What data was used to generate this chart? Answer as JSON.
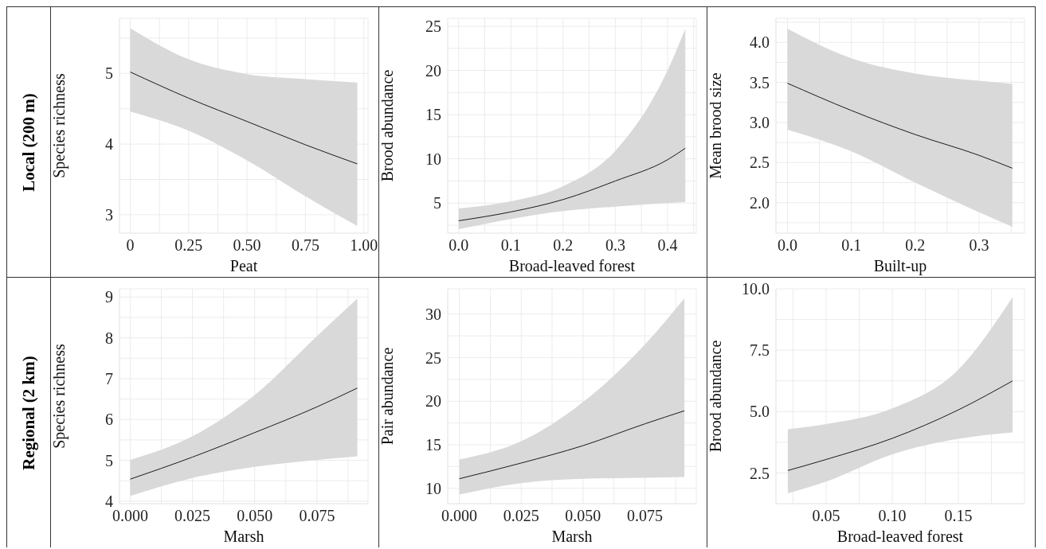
{
  "chart_data": [
    {
      "type": "line",
      "xlabel": "Peat",
      "ylabel": "Species richness",
      "annotations": [
        "Local (200 m)"
      ],
      "grid": true,
      "xlim": [
        -0.046,
        1.018
      ],
      "ylim": [
        2.74,
        5.78
      ],
      "xticks": [
        0,
        {
          "value": 0.125,
          "label": null
        },
        0.25,
        {
          "value": 0.375,
          "label": null
        },
        {
          "value": 0.5,
          "label": "0.50"
        },
        {
          "value": 0.625,
          "label": null
        },
        0.75,
        {
          "value": 0.875,
          "label": null
        },
        {
          "value": 1,
          "label": "1.00"
        }
      ],
      "yticks": [
        3,
        {
          "value": 3.5,
          "label": null
        },
        4,
        {
          "value": 4.5,
          "label": null
        },
        5,
        {
          "value": 5.5,
          "label": null
        }
      ],
      "series": [
        {
          "color": "#1a1a1a",
          "x": [
            0,
            0.25,
            0.5,
            0.75,
            0.972
          ],
          "values": [
            5.02,
            4.65,
            4.32,
            3.99,
            3.72
          ],
          "lower": [
            4.46,
            4.19,
            3.77,
            3.26,
            2.84
          ],
          "upper": [
            5.64,
            5.2,
            4.99,
            4.92,
            4.87
          ]
        }
      ]
    },
    {
      "type": "line",
      "xlabel": "Broad-leaved forest",
      "ylabel": "Brood abundance",
      "grid": true,
      "xlim": [
        -0.021,
        0.455
      ],
      "ylim": [
        1.6,
        25.9
      ],
      "xticks": [
        {
          "value": 0,
          "label": "0.0"
        },
        {
          "value": 0.05,
          "label": null
        },
        0.1,
        {
          "value": 0.15,
          "label": null
        },
        0.2,
        {
          "value": 0.25,
          "label": null
        },
        0.3,
        {
          "value": 0.35,
          "label": null
        },
        0.4,
        {
          "value": 0.45,
          "label": null
        }
      ],
      "yticks": [
        {
          "value": 2.5,
          "label": null
        },
        5,
        {
          "value": 7.5,
          "label": null
        },
        10,
        {
          "value": 12.5,
          "label": null
        },
        15,
        {
          "value": 17.5,
          "label": null
        },
        20,
        {
          "value": 22.5,
          "label": null
        },
        25
      ],
      "series": [
        {
          "color": "#1a1a1a",
          "x": [
            0,
            0.1,
            0.2,
            0.3,
            0.4,
            0.434
          ],
          "values": [
            3.0,
            4.0,
            5.4,
            7.5,
            9.9,
            11.2
          ],
          "lower": [
            2.05,
            3.2,
            4.1,
            4.6,
            5.0,
            5.1
          ],
          "upper": [
            4.4,
            5.2,
            6.9,
            10.9,
            20,
            24.7
          ]
        }
      ]
    },
    {
      "type": "line",
      "xlabel": "Built-up",
      "ylabel": "Mean brood size",
      "grid": true,
      "xlim": [
        -0.018,
        0.371
      ],
      "ylim": [
        1.62,
        4.3
      ],
      "xticks": [
        {
          "value": 0,
          "label": "0.0"
        },
        {
          "value": 0.05,
          "label": null
        },
        0.1,
        {
          "value": 0.15,
          "label": null
        },
        0.2,
        {
          "value": 0.25,
          "label": null
        },
        0.3,
        {
          "value": 0.35,
          "label": null
        }
      ],
      "yticks": [
        {
          "value": 1.75,
          "label": null
        },
        {
          "value": 2,
          "label": "2.0"
        },
        {
          "value": 2.25,
          "label": null
        },
        2.5,
        {
          "value": 2.75,
          "label": null
        },
        {
          "value": 3,
          "label": "3.0"
        },
        {
          "value": 3.25,
          "label": null
        },
        3.5,
        {
          "value": 3.75,
          "label": null
        },
        {
          "value": 4,
          "label": "4.0"
        },
        {
          "value": 4.25,
          "label": null
        }
      ],
      "series": [
        {
          "color": "#1a1a1a",
          "x": [
            0,
            0.1,
            0.2,
            0.3,
            0.352
          ],
          "values": [
            3.49,
            3.15,
            2.85,
            2.59,
            2.43
          ],
          "lower": [
            2.91,
            2.64,
            2.25,
            1.88,
            1.7
          ],
          "upper": [
            4.17,
            3.8,
            3.61,
            3.52,
            3.48
          ]
        }
      ]
    },
    {
      "type": "line",
      "xlabel": "Marsh",
      "ylabel": "Species richness",
      "annotations": [
        "Regional (2 km)"
      ],
      "grid": true,
      "xlim": [
        -0.0043,
        0.0955
      ],
      "ylim": [
        3.94,
        9.2
      ],
      "xticks": [
        {
          "value": 0,
          "label": "0.000"
        },
        {
          "value": 0.0125,
          "label": null
        },
        0.025,
        {
          "value": 0.0375,
          "label": null
        },
        {
          "value": 0.05,
          "label": "0.050"
        },
        {
          "value": 0.0625,
          "label": null
        },
        0.075,
        {
          "value": 0.0875,
          "label": null
        }
      ],
      "yticks": [
        4,
        {
          "value": 4.5,
          "label": null
        },
        5,
        {
          "value": 5.5,
          "label": null
        },
        6,
        {
          "value": 6.5,
          "label": null
        },
        7,
        {
          "value": 7.5,
          "label": null
        },
        8,
        {
          "value": 8.5,
          "label": null
        },
        9
      ],
      "series": [
        {
          "color": "#1a1a1a",
          "x": [
            0,
            0.025,
            0.05,
            0.075,
            0.0912
          ],
          "values": [
            4.54,
            5.08,
            5.68,
            6.31,
            6.77
          ],
          "lower": [
            4.13,
            4.57,
            4.84,
            5.01,
            5.1
          ],
          "upper": [
            5.01,
            5.59,
            6.6,
            8.04,
            8.96
          ]
        }
      ]
    },
    {
      "type": "line",
      "xlabel": "Marsh",
      "ylabel": "Pair abundance",
      "grid": true,
      "xlim": [
        -0.0047,
        0.0958
      ],
      "ylim": [
        8.24,
        32.9
      ],
      "xticks": [
        {
          "value": 0,
          "label": "0.000"
        },
        {
          "value": 0.0125,
          "label": null
        },
        0.025,
        {
          "value": 0.0375,
          "label": null
        },
        {
          "value": 0.05,
          "label": "0.050"
        },
        {
          "value": 0.0625,
          "label": null
        },
        0.075,
        {
          "value": 0.0875,
          "label": null
        }
      ],
      "yticks": [
        10,
        {
          "value": 12.5,
          "label": null
        },
        15,
        {
          "value": 17.5,
          "label": null
        },
        20,
        {
          "value": 22.5,
          "label": null
        },
        25,
        {
          "value": 27.5,
          "label": null
        },
        30
      ],
      "series": [
        {
          "color": "#1a1a1a",
          "x": [
            0,
            0.025,
            0.05,
            0.075,
            0.091
          ],
          "values": [
            11.1,
            12.9,
            14.9,
            17.4,
            18.9
          ],
          "lower": [
            9.3,
            10.6,
            11.1,
            11.2,
            11.3
          ],
          "upper": [
            13.3,
            15.4,
            19.9,
            26.5,
            31.8
          ]
        }
      ]
    },
    {
      "type": "line",
      "xlabel": "Broad-leaved forest",
      "ylabel": "Brood abundance",
      "grid": true,
      "xlim": [
        0.012,
        0.2
      ],
      "ylim": [
        1.25,
        10.0
      ],
      "xticks": [
        {
          "value": 0.025,
          "label": null
        },
        0.05,
        {
          "value": 0.075,
          "label": null
        },
        {
          "value": 0.1,
          "label": "0.10"
        },
        {
          "value": 0.125,
          "label": null
        },
        0.15,
        {
          "value": 0.175,
          "label": null
        }
      ],
      "yticks": [
        {
          "value": 1.25,
          "label": null
        },
        2.5,
        {
          "value": 3.75,
          "label": null
        },
        {
          "value": 5,
          "label": "5.0"
        },
        {
          "value": 6.25,
          "label": null
        },
        7.5,
        {
          "value": 8.75,
          "label": null
        },
        {
          "value": 10,
          "label": "10.0"
        }
      ],
      "series": [
        {
          "color": "#1a1a1a",
          "x": [
            0.021,
            0.05,
            0.1,
            0.15,
            0.191
          ],
          "values": [
            2.6,
            3.05,
            3.91,
            5.07,
            6.25
          ],
          "lower": [
            1.67,
            2.15,
            3.26,
            3.89,
            4.15
          ],
          "upper": [
            4.28,
            4.49,
            5.13,
            6.71,
            9.66
          ]
        }
      ]
    }
  ]
}
